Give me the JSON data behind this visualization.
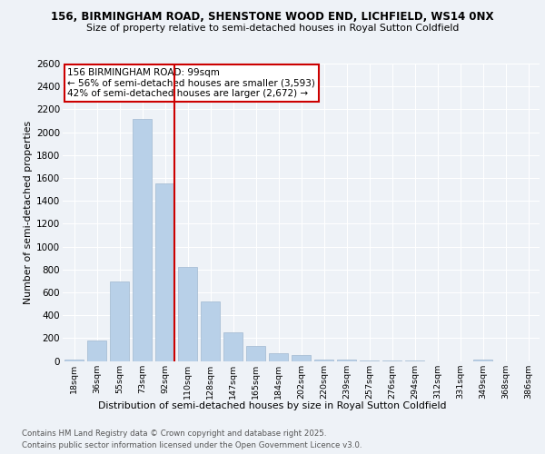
{
  "title_line1": "156, BIRMINGHAM ROAD, SHENSTONE WOOD END, LICHFIELD, WS14 0NX",
  "title_line2": "Size of property relative to semi-detached houses in Royal Sutton Coldfield",
  "xlabel": "Distribution of semi-detached houses by size in Royal Sutton Coldfield",
  "ylabel": "Number of semi-detached properties",
  "footer_line1": "Contains HM Land Registry data © Crown copyright and database right 2025.",
  "footer_line2": "Contains public sector information licensed under the Open Government Licence v3.0.",
  "categories": [
    "18sqm",
    "36sqm",
    "55sqm",
    "73sqm",
    "92sqm",
    "110sqm",
    "128sqm",
    "147sqm",
    "165sqm",
    "184sqm",
    "202sqm",
    "220sqm",
    "239sqm",
    "257sqm",
    "276sqm",
    "294sqm",
    "312sqm",
    "331sqm",
    "349sqm",
    "368sqm",
    "386sqm"
  ],
  "values": [
    10,
    175,
    695,
    2115,
    1555,
    820,
    520,
    250,
    130,
    65,
    50,
    15,
    8,
    5,
    3,
    2,
    0,
    0,
    15,
    0,
    0
  ],
  "bar_color": "#b8d0e8",
  "bar_edge_color": "#a0b8d0",
  "property_bin_index": 4,
  "marker_line_color": "#cc0000",
  "annotation_text_line1": "156 BIRMINGHAM ROAD: 99sqm",
  "annotation_text_line2": "← 56% of semi-detached houses are smaller (3,593)",
  "annotation_text_line3": "42% of semi-detached houses are larger (2,672) →",
  "annotation_box_color": "#ffffff",
  "annotation_box_edge": "#cc0000",
  "ylim": [
    0,
    2600
  ],
  "yticks": [
    0,
    200,
    400,
    600,
    800,
    1000,
    1200,
    1400,
    1600,
    1800,
    2000,
    2200,
    2400,
    2600
  ],
  "background_color": "#eef2f7",
  "grid_color": "#ffffff"
}
